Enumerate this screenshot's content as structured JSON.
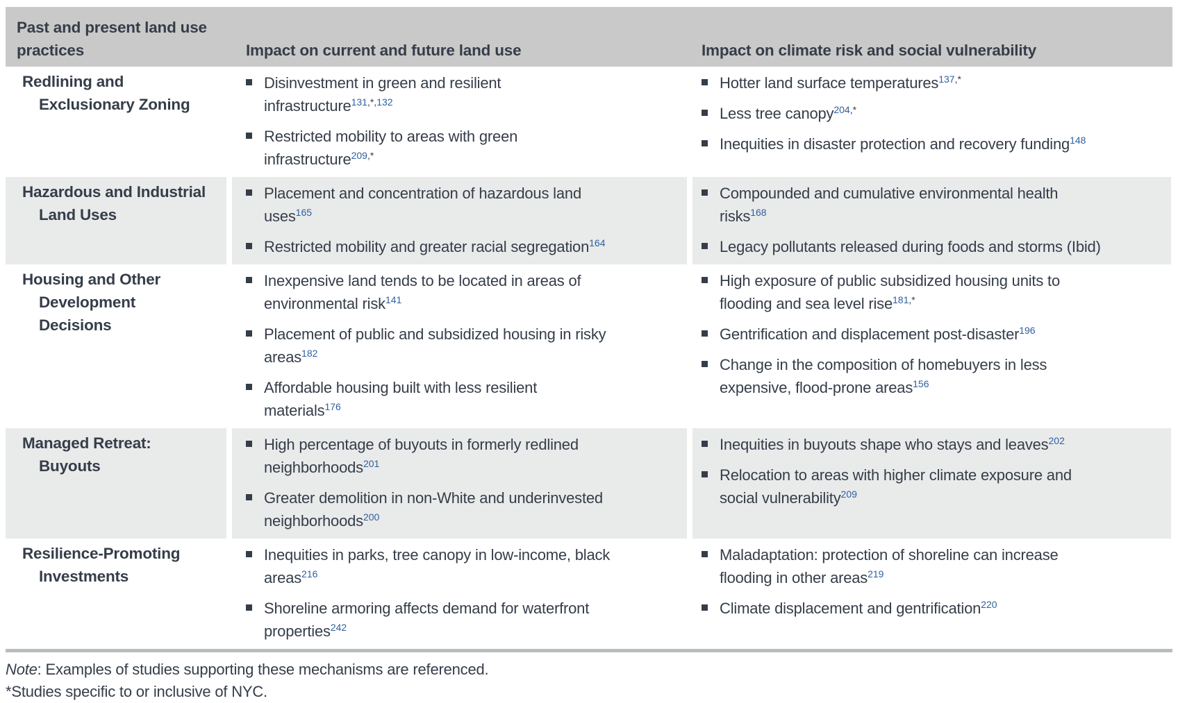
{
  "colors": {
    "header_bg": "#c9c9c9",
    "stripe_bg": "#e9eaea",
    "text": "#353d49",
    "citation_blue": "#2e5f9f",
    "bottom_rule": "#b9bcbc"
  },
  "table": {
    "headers": [
      {
        "lines": [
          "Past and present land use",
          "practices"
        ]
      },
      {
        "label": "Impact on current and future land use"
      },
      {
        "label": "Impact on climate risk and social vulnerability"
      }
    ],
    "rows": [
      {
        "practice": "Redlining and Exclusionary Zoning",
        "practice_lines": [
          "Redlining and",
          "Exclusionary Zoning"
        ],
        "striped": false,
        "land_use_impacts": [
          {
            "lines": [
              "Disinvestment in green and resilient",
              "infrastructure"
            ],
            "refs": [
              {
                "t": "131",
                "link": true
              },
              {
                "t": ",*,",
                "link": false
              },
              {
                "t": "132",
                "link": true
              }
            ]
          },
          {
            "lines": [
              "Restricted mobility to areas with green",
              "infrastructure"
            ],
            "refs": [
              {
                "t": "209",
                "link": true
              },
              {
                "t": ",*",
                "link": false
              }
            ]
          }
        ],
        "climate_impacts": [
          {
            "lines": [
              "Hotter land surface temperatures"
            ],
            "refs": [
              {
                "t": "137",
                "link": true
              },
              {
                "t": ",*",
                "link": false
              }
            ]
          },
          {
            "lines": [
              "Less tree canopy"
            ],
            "refs": [
              {
                "t": "204",
                "link": true
              },
              {
                "t": ",*",
                "link": false
              }
            ]
          },
          {
            "lines": [
              "Inequities in disaster protection and recovery funding"
            ],
            "refs": [
              {
                "t": "148",
                "link": true
              }
            ]
          }
        ]
      },
      {
        "practice": "Hazardous and Industrial Land Uses",
        "practice_lines": [
          "Hazardous and Industrial",
          "Land Uses"
        ],
        "striped": true,
        "land_use_impacts": [
          {
            "lines": [
              "Placement and concentration of hazardous land",
              "uses"
            ],
            "refs": [
              {
                "t": "165",
                "link": true
              }
            ]
          },
          {
            "lines": [
              "Restricted mobility and greater racial segregation"
            ],
            "refs": [
              {
                "t": "164",
                "link": true
              }
            ]
          }
        ],
        "climate_impacts": [
          {
            "lines": [
              "Compounded and cumulative environmental health",
              "risks"
            ],
            "refs": [
              {
                "t": "168",
                "link": true
              }
            ]
          },
          {
            "lines": [
              "Legacy pollutants released during foods and storms (Ibid)"
            ],
            "refs": []
          }
        ]
      },
      {
        "practice": "Housing and Other Development Decisions",
        "practice_lines": [
          "Housing and Other",
          "Development",
          "Decisions"
        ],
        "striped": false,
        "land_use_impacts": [
          {
            "lines": [
              "Inexpensive land tends to be located in areas of",
              "environmental risk"
            ],
            "refs": [
              {
                "t": "141",
                "link": true
              }
            ]
          },
          {
            "lines": [
              "Placement of public and subsidized housing in risky",
              "areas"
            ],
            "refs": [
              {
                "t": "182",
                "link": true
              }
            ]
          },
          {
            "lines": [
              "Affordable housing built with less resilient",
              "materials"
            ],
            "refs": [
              {
                "t": "176",
                "link": true
              }
            ]
          }
        ],
        "climate_impacts": [
          {
            "lines": [
              "High exposure of public subsidized housing units to",
              "flooding and sea level rise"
            ],
            "refs": [
              {
                "t": "181",
                "link": true
              },
              {
                "t": ",*",
                "link": false
              }
            ]
          },
          {
            "lines": [
              "Gentrification and displacement post-disaster"
            ],
            "refs": [
              {
                "t": "196",
                "link": true
              }
            ]
          },
          {
            "lines": [
              "Change in the composition of homebuyers in less",
              "expensive, flood-prone areas"
            ],
            "refs": [
              {
                "t": "156",
                "link": true
              }
            ]
          }
        ]
      },
      {
        "practice": "Managed Retreat: Buyouts",
        "practice_lines": [
          "Managed Retreat:",
          "Buyouts"
        ],
        "striped": true,
        "land_use_impacts": [
          {
            "lines": [
              "High percentage of buyouts in formerly redlined",
              "neighborhoods"
            ],
            "refs": [
              {
                "t": "201",
                "link": true
              }
            ]
          },
          {
            "lines": [
              "Greater demolition in non-White and underinvested",
              "neighborhoods"
            ],
            "refs": [
              {
                "t": "200",
                "link": true
              }
            ]
          }
        ],
        "climate_impacts": [
          {
            "lines": [
              "Inequities in buyouts shape who stays and leaves"
            ],
            "refs": [
              {
                "t": "202",
                "link": true
              }
            ]
          },
          {
            "lines": [
              "Relocation to areas with higher climate exposure and",
              "social vulnerability"
            ],
            "refs": [
              {
                "t": "209",
                "link": true
              }
            ]
          }
        ]
      },
      {
        "practice": "Resilience-Promoting Investments",
        "practice_lines": [
          "Resilience-Promoting",
          "Investments"
        ],
        "striped": false,
        "land_use_impacts": [
          {
            "lines": [
              "Inequities in parks, tree canopy in low-income, black",
              "areas"
            ],
            "refs": [
              {
                "t": "216",
                "link": true
              }
            ]
          },
          {
            "lines": [
              "Shoreline armoring affects demand for waterfront",
              "properties"
            ],
            "refs": [
              {
                "t": "242",
                "link": true
              }
            ]
          }
        ],
        "climate_impacts": [
          {
            "lines": [
              "Maladaptation: protection of shoreline can increase",
              "flooding in other areas"
            ],
            "refs": [
              {
                "t": "219",
                "link": true
              }
            ]
          },
          {
            "lines": [
              "Climate displacement and gentrification"
            ],
            "refs": [
              {
                "t": "220",
                "link": true
              }
            ]
          }
        ]
      }
    ]
  },
  "footnotes": {
    "note_label": "Note",
    "note_text": ": Examples of studies supporting these mechanisms are referenced.",
    "asterisk_note": "*Studies specific to or inclusive of NYC."
  }
}
